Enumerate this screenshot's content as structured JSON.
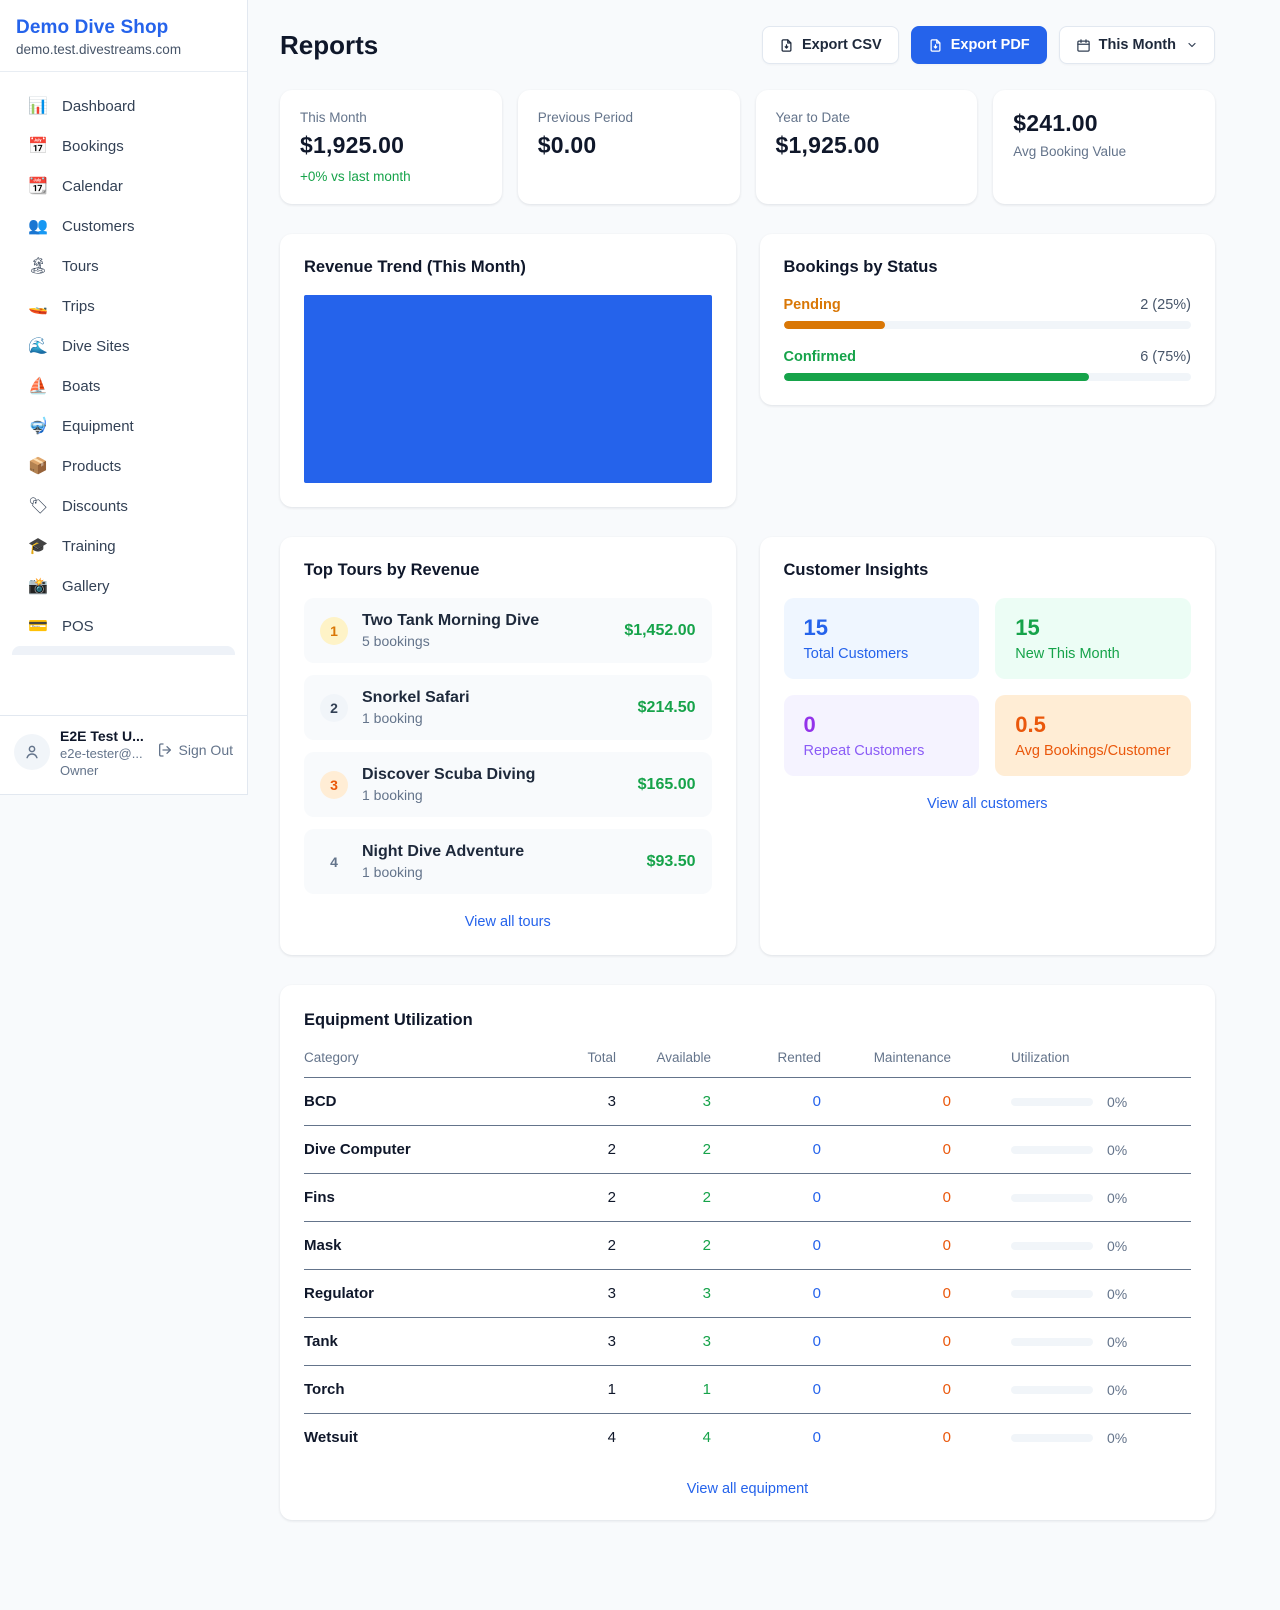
{
  "sidebar": {
    "shop_name": "Demo Dive Shop",
    "shop_domain": "demo.test.divestreams.com",
    "items": [
      {
        "icon": "📊",
        "label": "Dashboard"
      },
      {
        "icon": "📅",
        "label": "Bookings"
      },
      {
        "icon": "📆",
        "label": "Calendar"
      },
      {
        "icon": "👥",
        "label": "Customers"
      },
      {
        "icon": "🏝",
        "label": "Tours"
      },
      {
        "icon": "🚤",
        "label": "Trips"
      },
      {
        "icon": "🌊",
        "label": "Dive Sites"
      },
      {
        "icon": "⛵",
        "label": "Boats"
      },
      {
        "icon": "🤿",
        "label": "Equipment"
      },
      {
        "icon": "📦",
        "label": "Products"
      },
      {
        "icon": "🏷",
        "label": "Discounts"
      },
      {
        "icon": "🎓",
        "label": "Training"
      },
      {
        "icon": "📸",
        "label": "Gallery"
      },
      {
        "icon": "💳",
        "label": "POS"
      }
    ],
    "user": {
      "name": "E2E Test U...",
      "email": "e2e-tester@...",
      "role": "Owner",
      "sign_out_label": "Sign Out"
    }
  },
  "header": {
    "title": "Reports",
    "export_csv_label": "Export CSV",
    "export_pdf_label": "Export PDF",
    "period_label": "This Month"
  },
  "stats": [
    {
      "label": "This Month",
      "value": "$1,925.00",
      "delta": "+0% vs last month"
    },
    {
      "label": "Previous Period",
      "value": "$0.00"
    },
    {
      "label": "Year to Date",
      "value": "$1,925.00"
    },
    {
      "label": "Avg Booking Value",
      "value": "$241.00"
    }
  ],
  "revenue_trend": {
    "title": "Revenue Trend (This Month)",
    "fill_color": "#2563eb"
  },
  "bookings_by_status": {
    "title": "Bookings by Status",
    "rows": [
      {
        "label": "Pending",
        "count_text": "2 (25%)",
        "count": 2,
        "percent": 25,
        "color": "#d97706"
      },
      {
        "label": "Confirmed",
        "count_text": "6 (75%)",
        "count": 6,
        "percent": 75,
        "color": "#16a34a"
      }
    ]
  },
  "top_tours": {
    "title": "Top Tours by Revenue",
    "items": [
      {
        "rank": "1",
        "name": "Two Tank Morning Dive",
        "bookings": "5 bookings",
        "revenue": "$1,452.00"
      },
      {
        "rank": "2",
        "name": "Snorkel Safari",
        "bookings": "1 booking",
        "revenue": "$214.50"
      },
      {
        "rank": "3",
        "name": "Discover Scuba Diving",
        "bookings": "1 booking",
        "revenue": "$165.00"
      },
      {
        "rank": "4",
        "name": "Night Dive Adventure",
        "bookings": "1 booking",
        "revenue": "$93.50"
      }
    ],
    "view_all_label": "View all tours"
  },
  "customer_insights": {
    "title": "Customer Insights",
    "tiles": [
      {
        "value": "15",
        "label": "Total Customers",
        "accent": "#2563eb",
        "bg": "#eff6ff"
      },
      {
        "value": "15",
        "label": "New This Month",
        "accent": "#16a34a",
        "bg": "#ecfdf5"
      },
      {
        "value": "0",
        "label": "Repeat Customers",
        "accent": "#9333ea",
        "bg": "#f5f3ff"
      },
      {
        "value": "0.5",
        "label": "Avg Bookings/Customer",
        "accent": "#ea580c",
        "bg": "#ffedd5"
      }
    ],
    "view_all_label": "View all customers"
  },
  "equipment": {
    "title": "Equipment Utilization",
    "columns": [
      "Category",
      "Total",
      "Available",
      "Rented",
      "Maintenance",
      "Utilization"
    ],
    "rows": [
      {
        "category": "BCD",
        "total": "3",
        "available": "3",
        "rented": "0",
        "maintenance": "0",
        "utilization": "0%",
        "utilization_percent": 0
      },
      {
        "category": "Dive Computer",
        "total": "2",
        "available": "2",
        "rented": "0",
        "maintenance": "0",
        "utilization": "0%",
        "utilization_percent": 0
      },
      {
        "category": "Fins",
        "total": "2",
        "available": "2",
        "rented": "0",
        "maintenance": "0",
        "utilization": "0%",
        "utilization_percent": 0
      },
      {
        "category": "Mask",
        "total": "2",
        "available": "2",
        "rented": "0",
        "maintenance": "0",
        "utilization": "0%",
        "utilization_percent": 0
      },
      {
        "category": "Regulator",
        "total": "3",
        "available": "3",
        "rented": "0",
        "maintenance": "0",
        "utilization": "0%",
        "utilization_percent": 0
      },
      {
        "category": "Tank",
        "total": "3",
        "available": "3",
        "rented": "0",
        "maintenance": "0",
        "utilization": "0%",
        "utilization_percent": 0
      },
      {
        "category": "Torch",
        "total": "1",
        "available": "1",
        "rented": "0",
        "maintenance": "0",
        "utilization": "0%",
        "utilization_percent": 0
      },
      {
        "category": "Wetsuit",
        "total": "4",
        "available": "4",
        "rented": "0",
        "maintenance": "0",
        "utilization": "0%",
        "utilization_percent": 0
      }
    ],
    "view_all_label": "View all equipment"
  },
  "accent_colors": {
    "primary_blue": "#2563eb",
    "green": "#16a34a",
    "amber": "#d97706",
    "orange": "#ea580c",
    "purple": "#9333ea",
    "page_bg": "#f8fafc",
    "muted_text": "#64748b"
  }
}
